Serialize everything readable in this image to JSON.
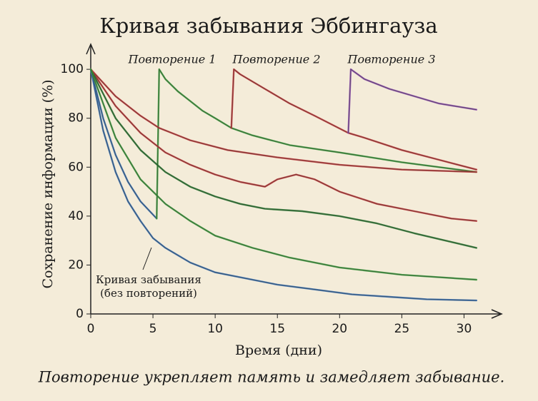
{
  "chart_data": {
    "type": "line",
    "title": "Кривая забывания Эббингауза",
    "subtitle": "Повторение укрепляет память и замедляет забывание.",
    "x_label": "Время (дни)",
    "y_label": "Сохранение информации (%)",
    "xlim": [
      0,
      32.5
    ],
    "ylim": [
      0,
      105
    ],
    "xticks": [
      0,
      5,
      10,
      15,
      20,
      25,
      30
    ],
    "yticks": [
      0,
      20,
      40,
      60,
      80,
      100
    ],
    "annotations": [
      {
        "label": "Повторение 1"
      },
      {
        "label": "Повторение 2"
      },
      {
        "label": "Повторение 3"
      },
      {
        "label": [
          "Кривая забывания",
          "(без повторений)"
        ]
      }
    ],
    "series": [
      {
        "color": "#3b6fb3",
        "x": [
          0,
          1,
          2,
          3,
          4,
          5,
          6,
          8,
          10,
          12,
          15,
          18,
          21,
          24,
          27,
          31
        ],
        "values": [
          100,
          75,
          58,
          46,
          38,
          31,
          27,
          21,
          17,
          15,
          12,
          10,
          8,
          7,
          6,
          5.5
        ]
      },
      {
        "color": "#3b6fb3",
        "x": [
          0,
          1,
          2,
          3,
          4,
          5.3
        ],
        "values": [
          100,
          80,
          65,
          54,
          46,
          39
        ]
      },
      {
        "color": "#3f9a3f",
        "x": [
          5.3,
          5.5,
          6,
          7,
          8,
          9,
          10,
          11.3,
          13,
          16,
          20,
          25,
          31
        ],
        "values": [
          39,
          100,
          96,
          91,
          87,
          83,
          80,
          76,
          73,
          69,
          66,
          62,
          58
        ]
      },
      {
        "color": "#c2393c",
        "x": [
          11.3,
          11.5,
          12,
          14,
          16,
          18,
          20.7,
          22,
          25,
          28,
          31
        ],
        "values": [
          76,
          100,
          98,
          92,
          86,
          81,
          74,
          72,
          67,
          63,
          59
        ]
      },
      {
        "color": "#8e4fae",
        "x": [
          20.7,
          20.9,
          22,
          24,
          26,
          28,
          31
        ],
        "values": [
          74,
          100,
          96,
          92,
          89,
          86,
          83.5
        ]
      },
      {
        "color": "#c2393c",
        "x": [
          0,
          2,
          4,
          5.5,
          8,
          11,
          15,
          20,
          25,
          31
        ],
        "values": [
          100,
          89,
          81,
          76,
          71,
          67,
          64,
          61,
          59,
          58
        ]
      },
      {
        "color": "#c2393c",
        "x": [
          0,
          2,
          4,
          6,
          8,
          10,
          12,
          14,
          15,
          16.5,
          18,
          20,
          23,
          26,
          29,
          31
        ],
        "values": [
          100,
          85,
          74,
          66,
          61,
          57,
          54,
          52,
          55,
          57,
          55,
          50,
          45,
          42,
          39,
          38
        ]
      },
      {
        "color": "#2f7a35",
        "x": [
          0,
          2,
          4,
          6,
          8,
          10,
          12,
          14,
          17,
          20,
          23,
          26,
          31
        ],
        "values": [
          100,
          80,
          67,
          58,
          52,
          48,
          45,
          43,
          42,
          40,
          37,
          33,
          27
        ]
      },
      {
        "color": "#3f9a3f",
        "x": [
          0,
          2,
          4,
          6,
          8,
          10,
          13,
          16,
          20,
          25,
          31
        ],
        "values": [
          100,
          72,
          55,
          45,
          38,
          32,
          27,
          23,
          19,
          16,
          14
        ]
      }
    ]
  }
}
